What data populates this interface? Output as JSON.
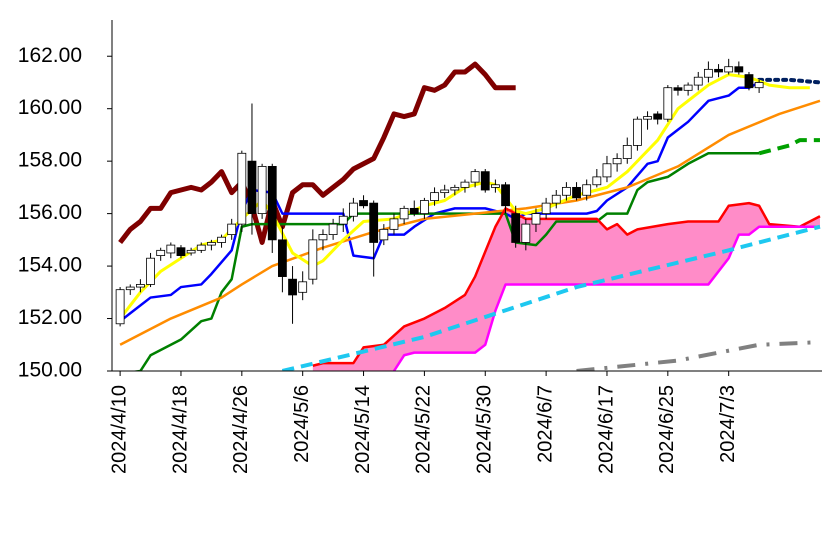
{
  "chart_data": {
    "type": "candlestick",
    "xlim": [
      -0.8,
      69.2
    ],
    "xticks": [
      {
        "value": 0,
        "label": "2024/4/10"
      },
      {
        "value": 6,
        "label": "2024/4/18"
      },
      {
        "value": 12,
        "label": "2024/4/26"
      },
      {
        "value": 18,
        "label": "2024/5/6"
      },
      {
        "value": 24,
        "label": "2024/5/14"
      },
      {
        "value": 30,
        "label": "2024/5/22"
      },
      {
        "value": 36,
        "label": "2024/5/30"
      },
      {
        "value": 42,
        "label": "2024/6/7"
      },
      {
        "value": 48,
        "label": "2024/6/17"
      },
      {
        "value": 54,
        "label": "2024/6/25"
      },
      {
        "value": 60,
        "label": "2024/7/3"
      }
    ],
    "ylim": [
      150,
      163
    ],
    "yticks": [
      {
        "value": 150,
        "label": "150.00"
      },
      {
        "value": 152,
        "label": "152.00"
      },
      {
        "value": 154,
        "label": "154.00"
      },
      {
        "value": 156,
        "label": "156.00"
      },
      {
        "value": 158,
        "label": "158.00"
      },
      {
        "value": 160,
        "label": "160.00"
      },
      {
        "value": 162,
        "label": "162.00"
      }
    ],
    "up_color": "#ffffff",
    "down_color": "#000000",
    "open": [
      151.8,
      153.1,
      153.2,
      153.3,
      154.4,
      154.5,
      154.7,
      154.5,
      154.6,
      154.8,
      154.9,
      155.2,
      155.6,
      158.0,
      156.0,
      157.8,
      155.0,
      153.5,
      153.0,
      153.5,
      155.0,
      155.2,
      155.6,
      155.9,
      156.5,
      156.4,
      155.0,
      155.4,
      155.8,
      156.2,
      156.0,
      156.5,
      156.8,
      156.9,
      157.0,
      157.2,
      157.6,
      157.0,
      157.1,
      156.0,
      154.9,
      155.6,
      156.0,
      156.4,
      156.7,
      157.0,
      156.7,
      157.1,
      157.4,
      157.9,
      158.1,
      158.6,
      159.6,
      159.8,
      159.6,
      160.8,
      160.7,
      160.9,
      161.2,
      161.5,
      161.4,
      161.6,
      161.3,
      160.8
    ],
    "high": [
      153.2,
      153.3,
      153.5,
      154.5,
      154.7,
      154.9,
      154.8,
      154.7,
      154.9,
      155.0,
      155.2,
      155.8,
      158.4,
      160.2,
      157.9,
      157.9,
      155.5,
      154.0,
      153.8,
      155.4,
      155.4,
      155.8,
      156.2,
      156.6,
      156.7,
      156.5,
      155.6,
      156.0,
      156.3,
      156.5,
      156.6,
      157.0,
      157.1,
      157.1,
      157.3,
      157.7,
      157.7,
      157.3,
      157.2,
      156.3,
      155.8,
      156.2,
      156.6,
      156.9,
      157.2,
      157.2,
      157.3,
      157.7,
      158.2,
      158.3,
      158.9,
      159.7,
      159.9,
      159.9,
      160.9,
      160.9,
      161.0,
      161.4,
      161.8,
      161.7,
      161.9,
      161.8,
      161.4,
      161.1
    ],
    "low": [
      151.7,
      152.9,
      153.0,
      153.2,
      154.2,
      154.3,
      154.3,
      154.4,
      154.5,
      154.6,
      154.7,
      155.0,
      155.3,
      155.2,
      155.8,
      154.5,
      153.0,
      151.8,
      152.7,
      153.3,
      154.6,
      155.0,
      155.3,
      155.7,
      156.2,
      153.6,
      154.8,
      155.2,
      155.6,
      155.9,
      155.8,
      156.3,
      156.6,
      156.7,
      156.8,
      157.0,
      156.8,
      156.8,
      156.0,
      154.7,
      154.6,
      155.3,
      155.8,
      156.2,
      156.5,
      156.5,
      156.5,
      157.0,
      157.2,
      157.6,
      157.9,
      158.4,
      159.2,
      159.4,
      159.5,
      160.5,
      160.5,
      160.7,
      161.0,
      161.2,
      161.3,
      161.3,
      160.7,
      160.6
    ],
    "close": [
      153.1,
      153.2,
      153.3,
      154.3,
      154.6,
      154.8,
      154.4,
      154.6,
      154.8,
      154.9,
      155.1,
      155.6,
      158.3,
      156.0,
      157.8,
      155.0,
      153.6,
      152.9,
      153.4,
      155.0,
      155.2,
      155.6,
      155.9,
      156.4,
      156.3,
      154.9,
      155.4,
      155.8,
      156.2,
      156.0,
      156.5,
      156.8,
      156.9,
      157.0,
      157.2,
      157.6,
      156.9,
      157.1,
      156.3,
      154.9,
      155.6,
      156.0,
      156.4,
      156.7,
      157.0,
      156.6,
      157.1,
      157.4,
      157.9,
      158.1,
      158.6,
      159.6,
      159.7,
      159.6,
      160.8,
      160.7,
      160.9,
      161.2,
      161.5,
      161.4,
      161.6,
      161.4,
      160.8,
      161.0
    ],
    "cloud_color": "#ff8cc8",
    "series": [
      {
        "color": "#7f0000",
        "style": "solid",
        "x": [
          0,
          1,
          2,
          3,
          4,
          5,
          6,
          7,
          8,
          9,
          10,
          11,
          12,
          13,
          14,
          15,
          16,
          17,
          18,
          19,
          20,
          21,
          22,
          23,
          24,
          25,
          26,
          27,
          28,
          29,
          30,
          31,
          32,
          33,
          34,
          35,
          36,
          37,
          38,
          39
        ],
        "values": [
          154.9,
          155.4,
          155.7,
          156.2,
          156.2,
          156.8,
          156.9,
          157.0,
          156.9,
          157.2,
          157.6,
          156.8,
          157.2,
          156.3,
          154.9,
          156.5,
          155.5,
          156.8,
          157.1,
          157.1,
          156.7,
          157.0,
          157.3,
          157.7,
          157.9,
          158.1,
          158.9,
          159.8,
          159.7,
          159.8,
          160.8,
          160.7,
          160.9,
          161.4,
          161.4,
          161.7,
          161.3,
          160.8,
          160.8,
          160.8
        ]
      },
      {
        "color": "#0000ff",
        "style": "solid",
        "x": [
          0,
          1,
          3,
          5,
          6,
          8,
          9,
          11,
          12,
          13,
          15,
          16,
          21,
          22,
          23,
          25,
          26,
          28,
          29,
          31,
          33,
          36,
          38,
          39,
          40,
          43,
          46,
          47,
          48,
          50,
          52,
          53,
          54,
          56,
          58,
          60,
          61,
          62,
          63
        ],
        "values": [
          151.9,
          152.2,
          152.8,
          152.9,
          153.2,
          153.3,
          153.7,
          154.6,
          156.1,
          156.9,
          156.8,
          156.0,
          156.0,
          156.0,
          154.4,
          154.3,
          155.2,
          155.2,
          155.5,
          156.0,
          156.2,
          156.2,
          156.0,
          155.8,
          156.0,
          156.0,
          156.0,
          156.1,
          156.5,
          157.0,
          157.9,
          158.0,
          158.9,
          159.5,
          160.3,
          160.5,
          160.8,
          160.8,
          161.0
        ]
      },
      {
        "color": "#002060",
        "style": "dotted",
        "x": [
          63,
          66,
          69
        ],
        "values": [
          161.1,
          161.1,
          161.0
        ]
      },
      {
        "color": "#008000",
        "style": "solid",
        "x": [
          0,
          2,
          3,
          5,
          6,
          8,
          9,
          10,
          11,
          12,
          13,
          22,
          23,
          38,
          39,
          41,
          42,
          43,
          47,
          48,
          50,
          51,
          52,
          54,
          56,
          58,
          63
        ],
        "values": [
          149.9,
          150.0,
          150.6,
          151.0,
          151.2,
          151.9,
          152.0,
          153.0,
          153.5,
          155.5,
          155.6,
          155.6,
          156.0,
          156.0,
          154.9,
          154.8,
          155.2,
          155.7,
          155.7,
          156.0,
          156.0,
          156.9,
          157.2,
          157.4,
          157.9,
          158.3,
          158.3
        ]
      },
      {
        "color": "#00a000",
        "style": "dashed",
        "x": [
          63,
          66,
          67,
          69
        ],
        "values": [
          158.3,
          158.6,
          158.8,
          158.8
        ]
      },
      {
        "color": "#ff8c00",
        "style": "solid",
        "x": [
          0,
          5,
          10,
          12,
          15,
          20,
          25,
          30,
          35,
          40,
          45,
          50,
          55,
          60,
          65,
          69
        ],
        "values": [
          151.0,
          152.0,
          152.8,
          153.3,
          154.0,
          154.7,
          155.3,
          155.8,
          156.0,
          156.2,
          156.5,
          157.0,
          157.8,
          159.0,
          159.8,
          160.3
        ]
      },
      {
        "color": "#ffff00",
        "style": "solid",
        "x": [
          0,
          2,
          4,
          6,
          8,
          10,
          12,
          14,
          15,
          17,
          19,
          20,
          22,
          24,
          27,
          30,
          32,
          34,
          36,
          37,
          38,
          39,
          40,
          42,
          45,
          48,
          50,
          53,
          55,
          58,
          60,
          62,
          64,
          66,
          68
        ],
        "values": [
          152.0,
          153.0,
          153.8,
          154.3,
          154.8,
          155.0,
          155.8,
          156.5,
          156.0,
          154.5,
          154.0,
          154.2,
          155.0,
          155.7,
          155.8,
          156.3,
          156.5,
          157.0,
          157.2,
          157.1,
          156.6,
          156.1,
          156.0,
          156.2,
          156.7,
          157.0,
          157.6,
          158.8,
          160.0,
          160.9,
          161.3,
          161.2,
          160.9,
          160.8,
          160.8
        ]
      },
      {
        "color": "#ff0000",
        "style": "solid",
        "x": [
          19,
          20,
          23,
          24,
          26,
          28,
          30,
          32,
          34,
          35,
          37,
          38,
          40,
          42,
          47,
          48,
          49,
          50,
          51,
          54,
          56,
          59,
          60,
          62,
          63,
          64,
          67,
          69
        ],
        "values": [
          150.2,
          150.3,
          150.3,
          150.9,
          151.0,
          151.7,
          152.0,
          152.4,
          152.9,
          153.6,
          155.5,
          156.2,
          155.8,
          155.8,
          155.8,
          155.4,
          155.6,
          155.2,
          155.4,
          155.6,
          155.7,
          155.7,
          156.3,
          156.4,
          156.3,
          155.6,
          155.5,
          155.9
        ]
      },
      {
        "color": "#ff00ff",
        "style": "solid",
        "x": [
          27,
          28,
          29,
          35,
          36,
          37,
          38,
          58,
          60,
          61,
          62,
          63,
          69
        ],
        "values": [
          150.0,
          150.6,
          150.7,
          150.7,
          151.0,
          152.3,
          153.3,
          153.3,
          154.3,
          155.2,
          155.2,
          155.5,
          155.5
        ]
      },
      {
        "color": "#1ec8f0",
        "style": "dashed",
        "x": [
          16,
          30,
          45,
          60,
          69
        ],
        "values": [
          150.0,
          151.3,
          153.2,
          154.6,
          155.5
        ]
      },
      {
        "color": "#808080",
        "style": "dashdot",
        "x": [
          45,
          55,
          63,
          69
        ],
        "values": [
          150.0,
          150.4,
          151.0,
          151.1
        ]
      }
    ]
  }
}
